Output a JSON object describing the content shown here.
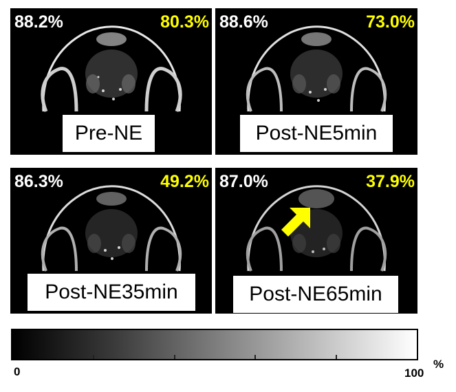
{
  "panels": [
    {
      "left_pct": "88.2%",
      "right_pct": "80.3%",
      "label": "Pre-NE"
    },
    {
      "left_pct": "88.6%",
      "right_pct": "73.0%",
      "label": "Post-NE5min"
    },
    {
      "left_pct": "86.3%",
      "right_pct": "49.2%",
      "label": "Post-NE35min"
    },
    {
      "left_pct": "87.0%",
      "right_pct": "37.9%",
      "label": "Post-NE65min"
    }
  ],
  "colorbar": {
    "min_label": "0",
    "max_label": "100",
    "unit": "%"
  },
  "colors": {
    "left_value": "#ffffff",
    "right_value": "#ffff00",
    "arrow": "#ffff00"
  },
  "icons": {
    "arrow": "arrow-icon"
  }
}
